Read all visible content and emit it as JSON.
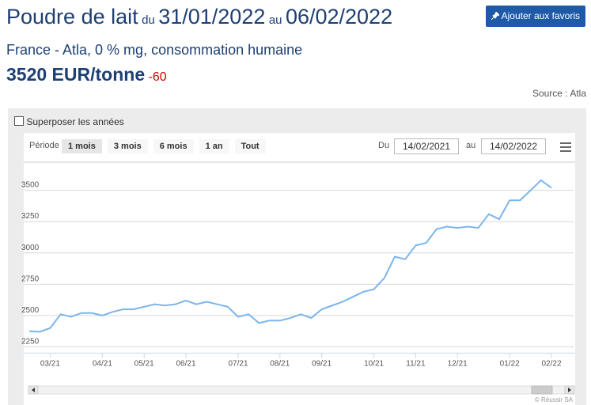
{
  "header": {
    "title": "Poudre de lait",
    "from_prefix": "du",
    "from_date": "31/01/2022",
    "to_prefix": "au",
    "to_date": "06/02/2022",
    "favorite_button": "Ajouter aux favoris",
    "subtitle": "France - Atla, 0 % mg, consommation humaine",
    "price": "3520 EUR/tonne",
    "change": "-60",
    "source": "Source : Atla"
  },
  "controls": {
    "overlay_checkbox": "Superposer les années",
    "period_label": "Période",
    "periods": [
      "1 mois",
      "3 mois",
      "6 mois",
      "1 an",
      "Tout"
    ],
    "from_label": "Du",
    "from_input": "14/02/2021",
    "to_label": "au",
    "to_input": "14/02/2022"
  },
  "chart_data": {
    "type": "line",
    "color": "#7cb5ec",
    "grid": true,
    "categories": [
      null,
      null,
      "03/21",
      null,
      null,
      null,
      null,
      "04/21",
      null,
      null,
      null,
      "05/21",
      null,
      null,
      null,
      "06/21",
      null,
      null,
      null,
      null,
      "07/21",
      null,
      null,
      null,
      "08/21",
      null,
      null,
      null,
      "09/21",
      null,
      null,
      null,
      null,
      "10/21",
      null,
      null,
      null,
      "11/21",
      null,
      null,
      null,
      "12/21",
      null,
      null,
      null,
      null,
      "01/22",
      null,
      null,
      null,
      "02/22"
    ],
    "values": [
      2375,
      2370,
      2400,
      2510,
      2490,
      2520,
      2520,
      2500,
      2530,
      2550,
      2550,
      2570,
      2590,
      2580,
      2590,
      2620,
      2590,
      2610,
      2590,
      2570,
      2490,
      2510,
      2440,
      2460,
      2460,
      2480,
      2510,
      2480,
      2550,
      2580,
      2610,
      2650,
      2690,
      2710,
      2800,
      2970,
      2950,
      3060,
      3080,
      3190,
      3210,
      3200,
      3210,
      3200,
      3310,
      3270,
      3420,
      3420,
      3500,
      3580,
      3520
    ],
    "ylim": [
      2200,
      3725
    ],
    "yticks": [
      2250,
      2500,
      2750,
      3000,
      3250,
      3500
    ]
  },
  "credit": "© Réussir SA"
}
